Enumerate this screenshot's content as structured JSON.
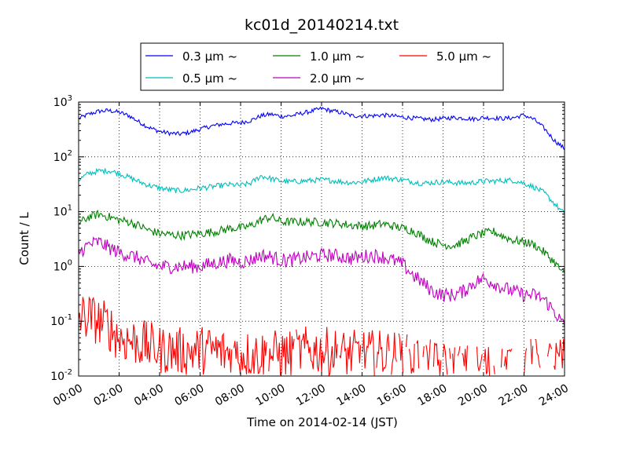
{
  "chart_data": {
    "type": "line",
    "title": "kc01d_20140214.txt",
    "xlabel": "Time on 2014-02-14 (JST)",
    "ylabel": "Count / L",
    "yscale": "log",
    "ylim": [
      0.01,
      1000
    ],
    "xlim": [
      "00:00",
      "24:00"
    ],
    "grid": true,
    "legend_placement": "top-center, above plot",
    "x_ticks": [
      "00:00",
      "02:00",
      "04:00",
      "06:00",
      "08:00",
      "10:00",
      "12:00",
      "14:00",
      "16:00",
      "18:00",
      "20:00",
      "22:00",
      "24:00"
    ],
    "y_ticks": [
      {
        "value": 0.01,
        "base": "10",
        "exp": "-2"
      },
      {
        "value": 0.1,
        "base": "10",
        "exp": "-1"
      },
      {
        "value": 1,
        "base": "10",
        "exp": "0"
      },
      {
        "value": 10,
        "base": "10",
        "exp": "1"
      },
      {
        "value": 100,
        "base": "10",
        "exp": "2"
      },
      {
        "value": 1000,
        "base": "10",
        "exp": "3"
      }
    ],
    "x_hours": [
      0,
      0.5,
      1,
      1.5,
      2,
      2.5,
      3,
      3.5,
      4,
      4.5,
      5,
      5.5,
      6,
      6.5,
      7,
      7.5,
      8,
      8.5,
      9,
      9.5,
      10,
      10.5,
      11,
      11.5,
      12,
      12.5,
      13,
      13.5,
      14,
      14.5,
      15,
      15.5,
      16,
      16.5,
      17,
      17.5,
      18,
      18.5,
      19,
      19.5,
      20,
      20.5,
      21,
      21.5,
      22,
      22.5,
      23,
      23.5,
      24
    ],
    "series": [
      {
        "name": "0.3 μm ~",
        "color": "#0000ff",
        "noise": 0.04,
        "values": [
          500,
          600,
          680,
          700,
          650,
          560,
          430,
          340,
          290,
          270,
          260,
          280,
          320,
          360,
          390,
          410,
          420,
          460,
          560,
          600,
          550,
          560,
          620,
          680,
          760,
          690,
          640,
          560,
          560,
          560,
          580,
          560,
          530,
          510,
          490,
          480,
          500,
          520,
          510,
          490,
          520,
          510,
          500,
          520,
          580,
          480,
          330,
          200,
          140
        ]
      },
      {
        "name": "0.5 μm ~",
        "color": "#00bfbf",
        "noise": 0.05,
        "values": [
          38,
          50,
          55,
          56,
          50,
          42,
          35,
          30,
          27,
          25,
          24,
          25,
          27,
          28,
          30,
          31,
          30,
          33,
          45,
          40,
          36,
          35,
          36,
          37,
          38,
          37,
          35,
          34,
          35,
          38,
          42,
          40,
          38,
          35,
          33,
          34,
          35,
          34,
          33,
          34,
          36,
          36,
          37,
          37,
          33,
          28,
          22,
          14,
          9
        ]
      },
      {
        "name": "1.0 μm ~",
        "color": "#008000",
        "noise": 0.08,
        "values": [
          6,
          8,
          9,
          8,
          7,
          6.5,
          5.5,
          4.5,
          4,
          3.8,
          3.7,
          3.8,
          4,
          4.2,
          4.5,
          5,
          5,
          5.5,
          7,
          8,
          6.5,
          6.5,
          6.5,
          6.5,
          6.4,
          6.2,
          6,
          5.6,
          5.5,
          5.5,
          6,
          5.5,
          5,
          4.5,
          3.5,
          2.8,
          2.5,
          2.4,
          2.8,
          3.5,
          4,
          4.3,
          3.5,
          3,
          2.8,
          2.5,
          1.8,
          1.2,
          0.7
        ]
      },
      {
        "name": "2.0 μm ~",
        "color": "#bf00bf",
        "noise": 0.13,
        "values": [
          1.8,
          2.5,
          2.8,
          2.2,
          1.8,
          1.6,
          1.4,
          1.1,
          1,
          1,
          1,
          1,
          1,
          1.1,
          1.2,
          1.3,
          1.2,
          1.3,
          1.6,
          1.5,
          1.3,
          1.3,
          1.4,
          1.5,
          1.6,
          1.6,
          1.5,
          1.4,
          1.5,
          1.6,
          1.5,
          1.3,
          1.1,
          0.7,
          0.5,
          0.35,
          0.3,
          0.3,
          0.35,
          0.5,
          0.6,
          0.5,
          0.4,
          0.35,
          0.3,
          0.3,
          0.25,
          0.15,
          0.08
        ]
      },
      {
        "name": "5.0 μm ~",
        "color": "#ff0000",
        "noise": 0.45,
        "values": [
          0.12,
          0.12,
          0.1,
          0.08,
          0.05,
          0.045,
          0.04,
          0.035,
          0.03,
          0.03,
          0.028,
          0.028,
          0.03,
          0.03,
          0.028,
          0.025,
          0.025,
          0.025,
          0.025,
          0.025,
          0.025,
          0.025,
          0.028,
          0.03,
          0.028,
          0.028,
          0.025,
          0.025,
          0.025,
          0.025,
          0.025,
          0.025,
          0.022,
          0.02,
          0.018,
          0.016,
          0.015,
          0.015,
          0.014,
          0.014,
          0.014,
          0.015,
          0.016,
          0.017,
          0.018,
          0.018,
          0.018,
          0.018,
          0.018
        ]
      }
    ]
  }
}
